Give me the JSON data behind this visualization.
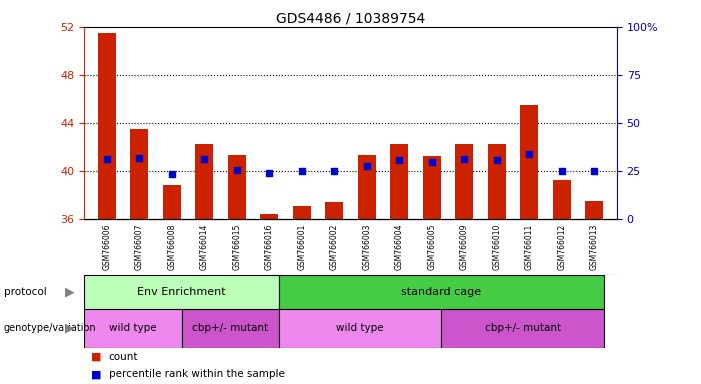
{
  "title": "GDS4486 / 10389754",
  "samples": [
    "GSM766006",
    "GSM766007",
    "GSM766008",
    "GSM766014",
    "GSM766015",
    "GSM766016",
    "GSM766001",
    "GSM766002",
    "GSM766003",
    "GSM766004",
    "GSM766005",
    "GSM766009",
    "GSM766010",
    "GSM766011",
    "GSM766012",
    "GSM766013"
  ],
  "bar_values": [
    51.5,
    43.5,
    38.8,
    42.2,
    41.3,
    36.4,
    37.1,
    37.4,
    41.3,
    42.2,
    41.2,
    42.2,
    42.2,
    45.5,
    39.2,
    37.5
  ],
  "blue_dots": [
    41.0,
    41.1,
    39.7,
    41.0,
    40.1,
    39.8,
    40.0,
    40.0,
    40.4,
    40.9,
    40.7,
    41.0,
    40.9,
    41.4,
    40.0,
    40.0
  ],
  "bar_base": 36,
  "ylim_left": [
    36,
    52
  ],
  "ylim_right": [
    0,
    100
  ],
  "yticks_left": [
    36,
    40,
    44,
    48,
    52
  ],
  "yticks_right": [
    0,
    25,
    50,
    75,
    100
  ],
  "bar_color": "#cc2200",
  "dot_color": "#0000cc",
  "right_axis_color": "#0000cc",
  "left_axis_color": "#cc2200",
  "grid_dotted_at": [
    40,
    44,
    48
  ],
  "env_enrich_color": "#bbffbb",
  "std_cage_color": "#44cc44",
  "wt_color": "#ee88ee",
  "mut_color": "#cc55cc",
  "sample_bg_color": "#cccccc",
  "bg_color": "#ffffff"
}
